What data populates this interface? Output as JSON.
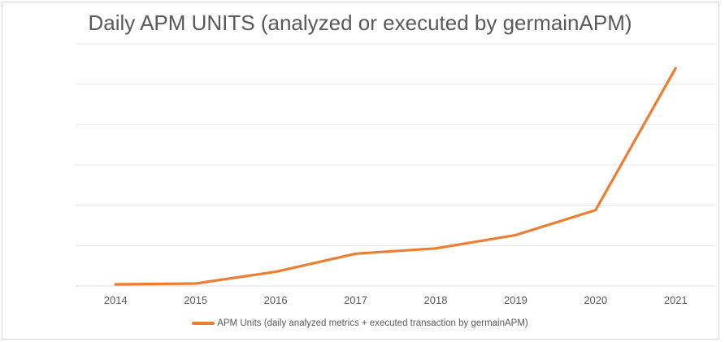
{
  "chart_data": {
    "type": "line",
    "title": "Daily APM UNITS (analyzed or executed by germainAPM)",
    "categories": [
      "2014",
      "2015",
      "2016",
      "2017",
      "2018",
      "2019",
      "2020",
      "2021"
    ],
    "series": [
      {
        "name": "APM Units (daily analyzed metrics + executed transaction by germainAPM)",
        "values": [
          0.04,
          0.06,
          0.35,
          0.8,
          0.93,
          1.26,
          1.88,
          5.4
        ],
        "color": "#ED7D31"
      }
    ],
    "xlabel": "",
    "ylabel": "",
    "ylim": [
      0,
      6
    ],
    "y_axis_labels_visible": false,
    "gridlines": "horizontal",
    "gridline_divisions": 6,
    "legend_position": "bottom"
  },
  "colors": {
    "line": "#ED7D31",
    "gridline": "#e4e4e4",
    "axis_line": "#d9d9d9",
    "text": "#595959",
    "frame_border": "#d4d4d4"
  }
}
